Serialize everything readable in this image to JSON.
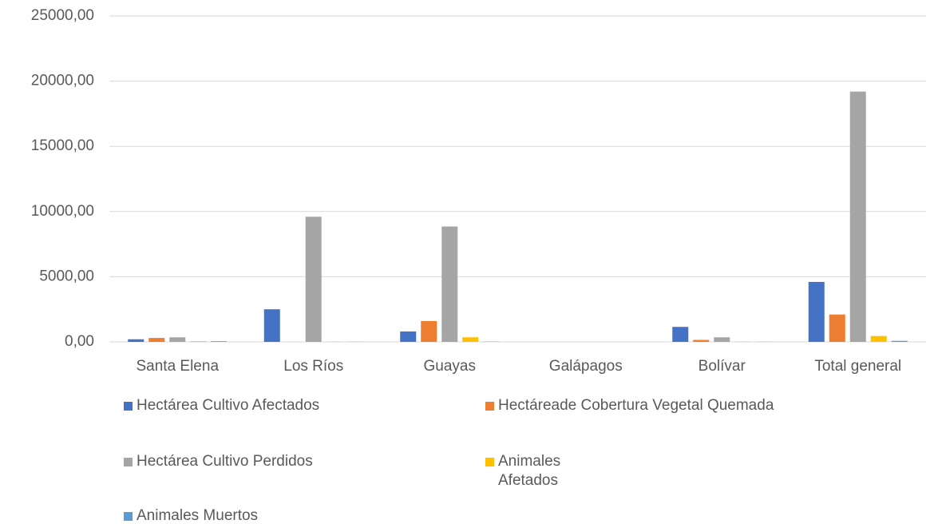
{
  "chart_data": {
    "type": "bar",
    "categories": [
      "Santa Elena",
      "Los Ríos",
      "Guayas",
      "Galápagos",
      "Bolívar",
      "Total general"
    ],
    "series": [
      {
        "name": "Hectárea Cultivo Afectados",
        "color": "#4472c4",
        "values": [
          200,
          2500,
          800,
          0,
          1150,
          4600
        ]
      },
      {
        "name": "Hectáreade Cobertura Vegetal Quemada",
        "color": "#ed7d31",
        "values": [
          300,
          0,
          1600,
          0,
          150,
          2100
        ]
      },
      {
        "name": "Hectárea Cultivo Perdidos",
        "color": "#a5a5a5",
        "values": [
          350,
          9600,
          8850,
          0,
          350,
          19200
        ]
      },
      {
        "name": "Animales Afetados",
        "color": "#ffc000",
        "values": [
          50,
          20,
          350,
          0,
          20,
          450
        ]
      },
      {
        "name": "Animales Muertos",
        "color": "#5b9bd5",
        "values": [
          50,
          10,
          20,
          0,
          10,
          80
        ]
      }
    ],
    "ylim": [
      0,
      25000
    ],
    "yticks": [
      {
        "value": 0,
        "label": "0,00"
      },
      {
        "value": 5000,
        "label": "5000,00"
      },
      {
        "value": 10000,
        "label": "10000,00"
      },
      {
        "value": 15000,
        "label": "15000,00"
      },
      {
        "value": 20000,
        "label": "20000,00"
      },
      {
        "value": 25000,
        "label": "25000,00"
      }
    ],
    "grid": true
  }
}
